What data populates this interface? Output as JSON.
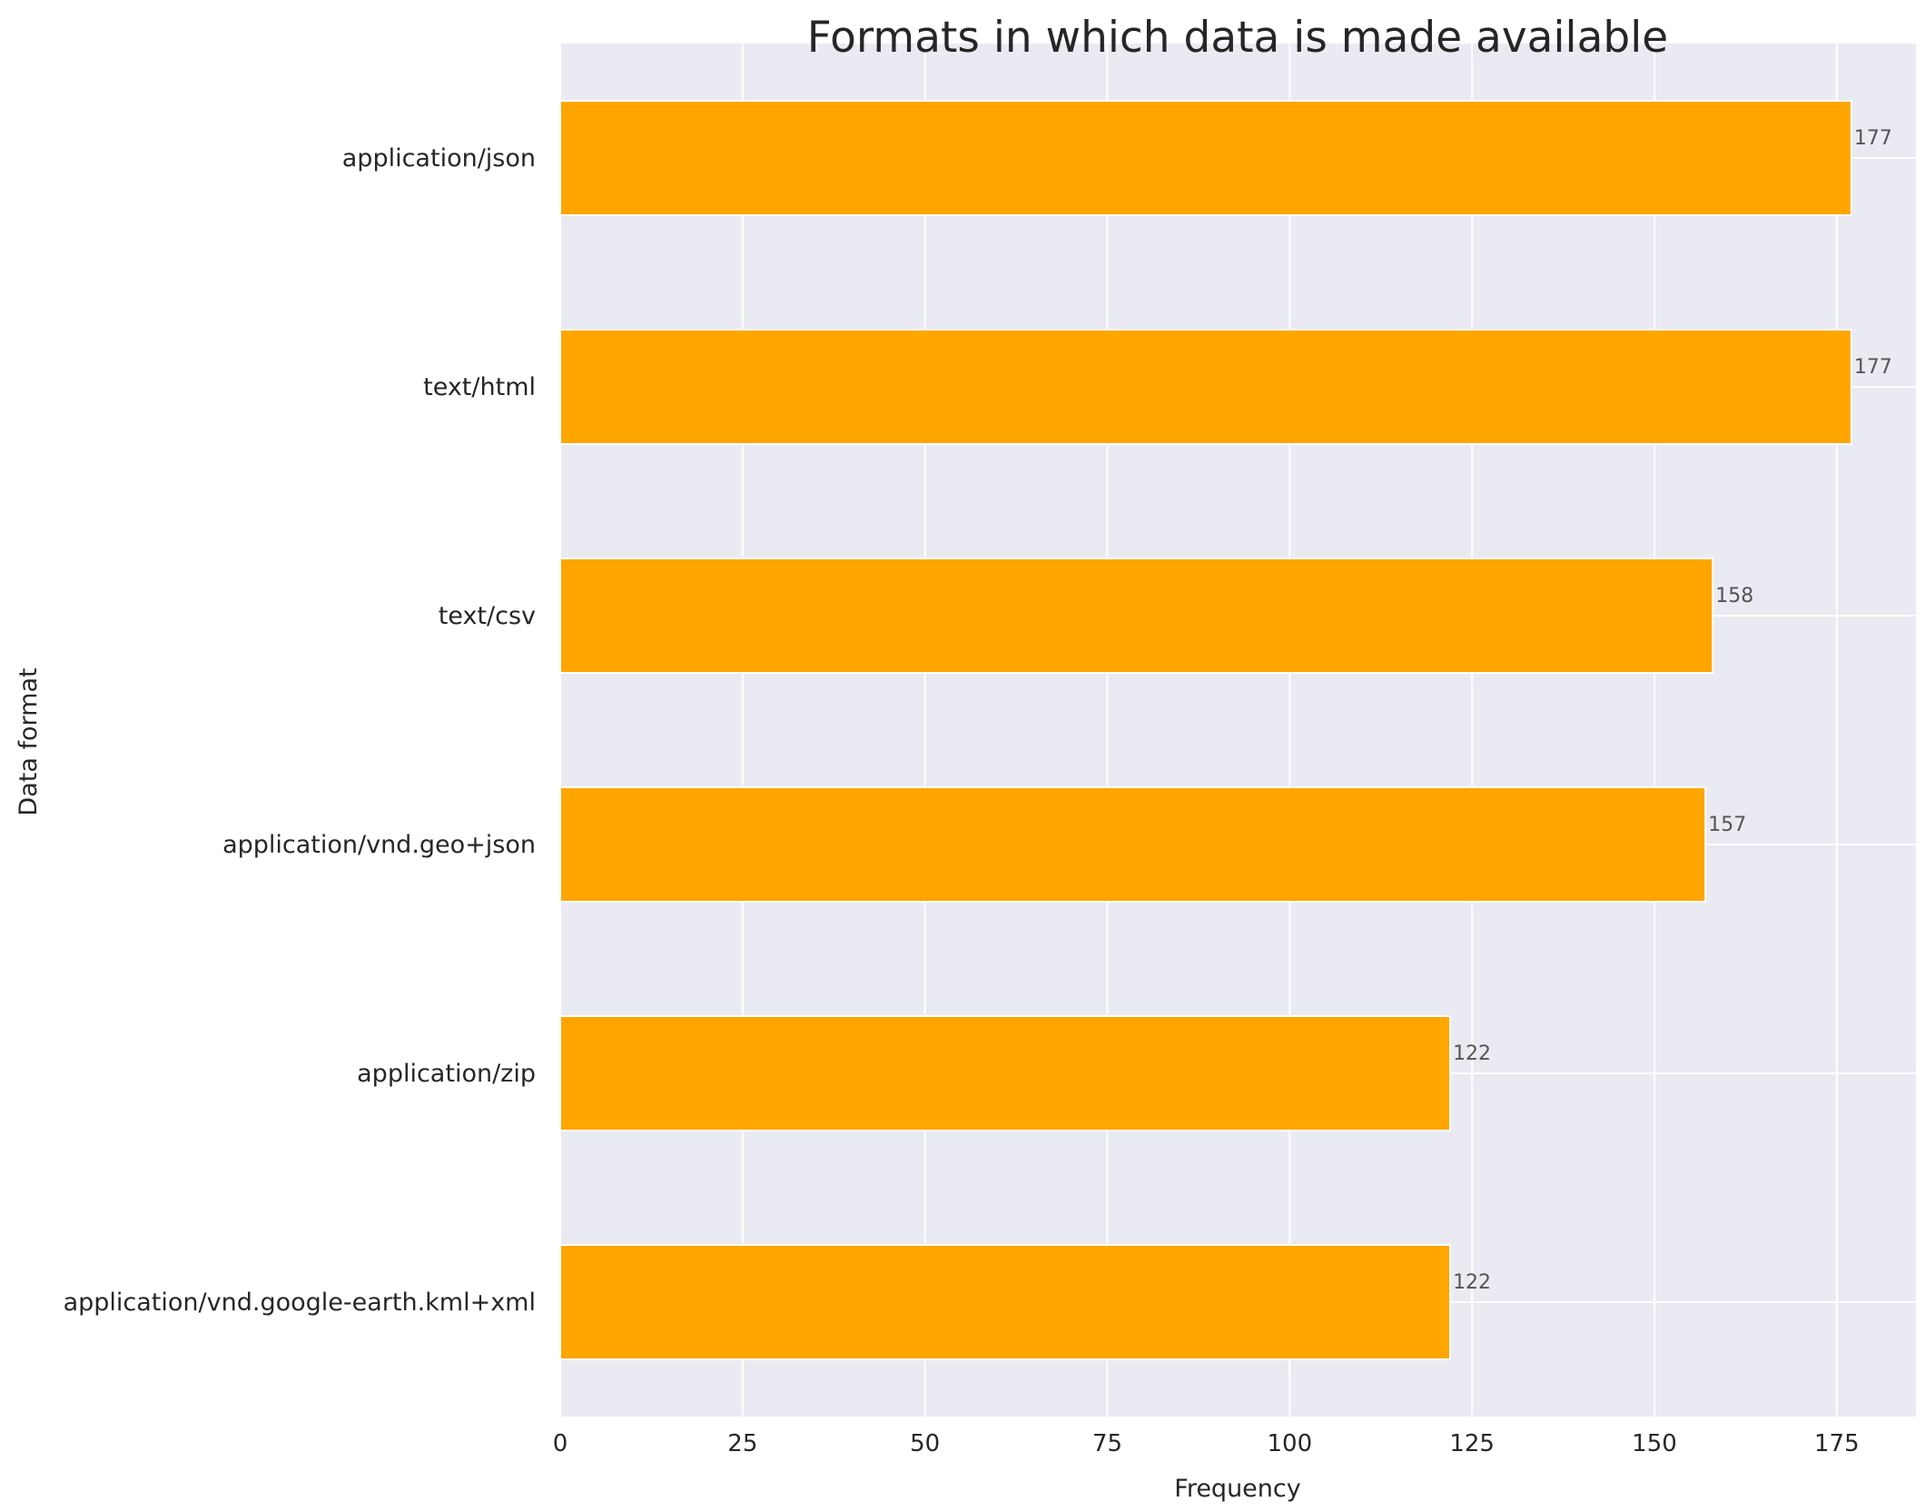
{
  "chart_data": {
    "type": "bar",
    "orientation": "horizontal",
    "title": "Formats in which data is made available",
    "xlabel": "Frequency",
    "ylabel": "Data format",
    "categories": [
      "application/json",
      "text/html",
      "text/csv",
      "application/vnd.geo+json",
      "application/zip",
      "application/vnd.google-earth.kml+xml"
    ],
    "values": [
      177,
      177,
      158,
      157,
      122,
      122
    ],
    "data_labels": [
      "177",
      "177",
      "158",
      "157",
      "122",
      "122"
    ],
    "xticks": [
      0,
      25,
      50,
      75,
      100,
      125,
      150,
      175
    ],
    "xtick_labels": [
      "0",
      "25",
      "50",
      "75",
      "100",
      "125",
      "150",
      "175"
    ],
    "xlim": [
      0,
      185.85
    ],
    "grid": true,
    "bar_color": "#FFA500",
    "background_color": "#EAEAF2",
    "grid_color": "#FFFFFF",
    "label_color": "#555555"
  }
}
